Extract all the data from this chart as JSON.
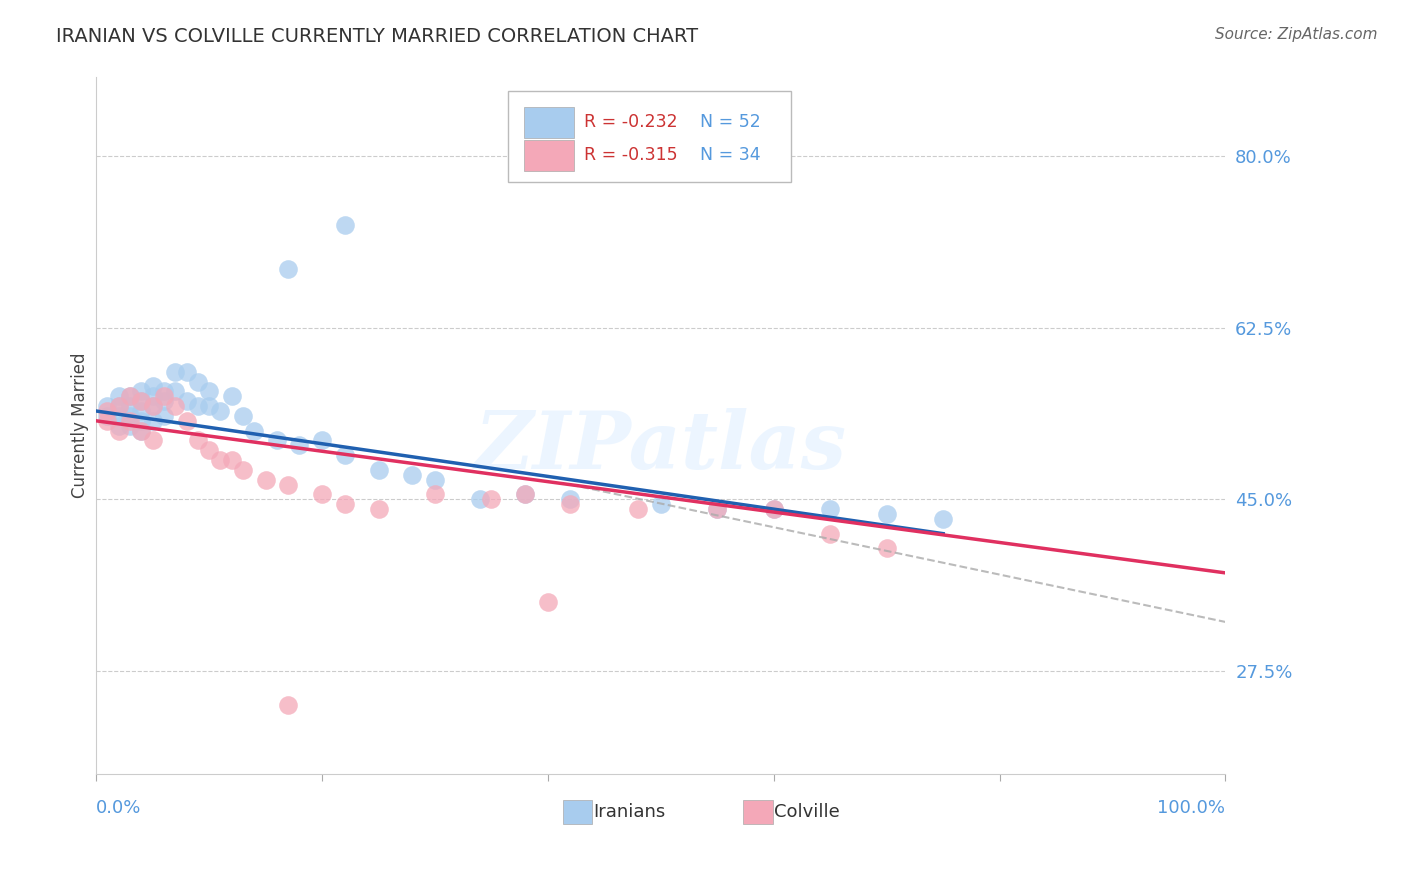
{
  "title": "IRANIAN VS COLVILLE CURRENTLY MARRIED CORRELATION CHART",
  "source": "Source: ZipAtlas.com",
  "ylabel": "Currently Married",
  "xlim": [
    0.0,
    1.0
  ],
  "ylim": [
    0.17,
    0.88
  ],
  "yticks": [
    0.275,
    0.45,
    0.625,
    0.8
  ],
  "ytick_labels": [
    "27.5%",
    "45.0%",
    "62.5%",
    "80.0%"
  ],
  "legend_blue_r": "R = -0.232",
  "legend_blue_n": "N = 52",
  "legend_pink_r": "R = -0.315",
  "legend_pink_n": "N = 34",
  "blue_color": "#a8ccee",
  "pink_color": "#f4a8b8",
  "line_blue": "#2060b0",
  "line_pink": "#e03060",
  "watermark": "ZIPatlas",
  "blue_x": [
    0.01,
    0.01,
    0.02,
    0.02,
    0.02,
    0.02,
    0.03,
    0.03,
    0.03,
    0.03,
    0.04,
    0.04,
    0.04,
    0.04,
    0.04,
    0.05,
    0.05,
    0.05,
    0.05,
    0.06,
    0.06,
    0.06,
    0.07,
    0.07,
    0.08,
    0.08,
    0.09,
    0.09,
    0.1,
    0.1,
    0.11,
    0.12,
    0.13,
    0.14,
    0.16,
    0.18,
    0.2,
    0.22,
    0.25,
    0.28,
    0.3,
    0.34,
    0.38,
    0.42,
    0.5,
    0.55,
    0.6,
    0.65,
    0.7,
    0.75,
    0.17,
    0.22
  ],
  "blue_y": [
    0.545,
    0.535,
    0.555,
    0.545,
    0.535,
    0.525,
    0.555,
    0.545,
    0.535,
    0.525,
    0.56,
    0.55,
    0.54,
    0.53,
    0.52,
    0.565,
    0.555,
    0.545,
    0.53,
    0.56,
    0.55,
    0.535,
    0.58,
    0.56,
    0.58,
    0.55,
    0.57,
    0.545,
    0.56,
    0.545,
    0.54,
    0.555,
    0.535,
    0.52,
    0.51,
    0.505,
    0.51,
    0.495,
    0.48,
    0.475,
    0.47,
    0.45,
    0.455,
    0.45,
    0.445,
    0.44,
    0.44,
    0.44,
    0.435,
    0.43,
    0.685,
    0.73
  ],
  "pink_x": [
    0.01,
    0.01,
    0.02,
    0.02,
    0.03,
    0.03,
    0.04,
    0.04,
    0.05,
    0.05,
    0.06,
    0.07,
    0.08,
    0.09,
    0.1,
    0.11,
    0.12,
    0.13,
    0.15,
    0.17,
    0.2,
    0.22,
    0.25,
    0.3,
    0.35,
    0.38,
    0.42,
    0.48,
    0.55,
    0.6,
    0.65,
    0.7,
    0.17,
    0.4
  ],
  "pink_y": [
    0.54,
    0.53,
    0.545,
    0.52,
    0.555,
    0.53,
    0.55,
    0.52,
    0.545,
    0.51,
    0.555,
    0.545,
    0.53,
    0.51,
    0.5,
    0.49,
    0.49,
    0.48,
    0.47,
    0.465,
    0.455,
    0.445,
    0.44,
    0.455,
    0.45,
    0.455,
    0.445,
    0.44,
    0.44,
    0.44,
    0.415,
    0.4,
    0.24,
    0.345
  ],
  "blue_line_x": [
    0.0,
    0.75
  ],
  "blue_line_y": [
    0.54,
    0.415
  ],
  "pink_line_x": [
    0.0,
    1.0
  ],
  "pink_line_y": [
    0.53,
    0.375
  ],
  "dashed_line_x": [
    0.42,
    1.0
  ],
  "dashed_line_y": [
    0.465,
    0.325
  ]
}
